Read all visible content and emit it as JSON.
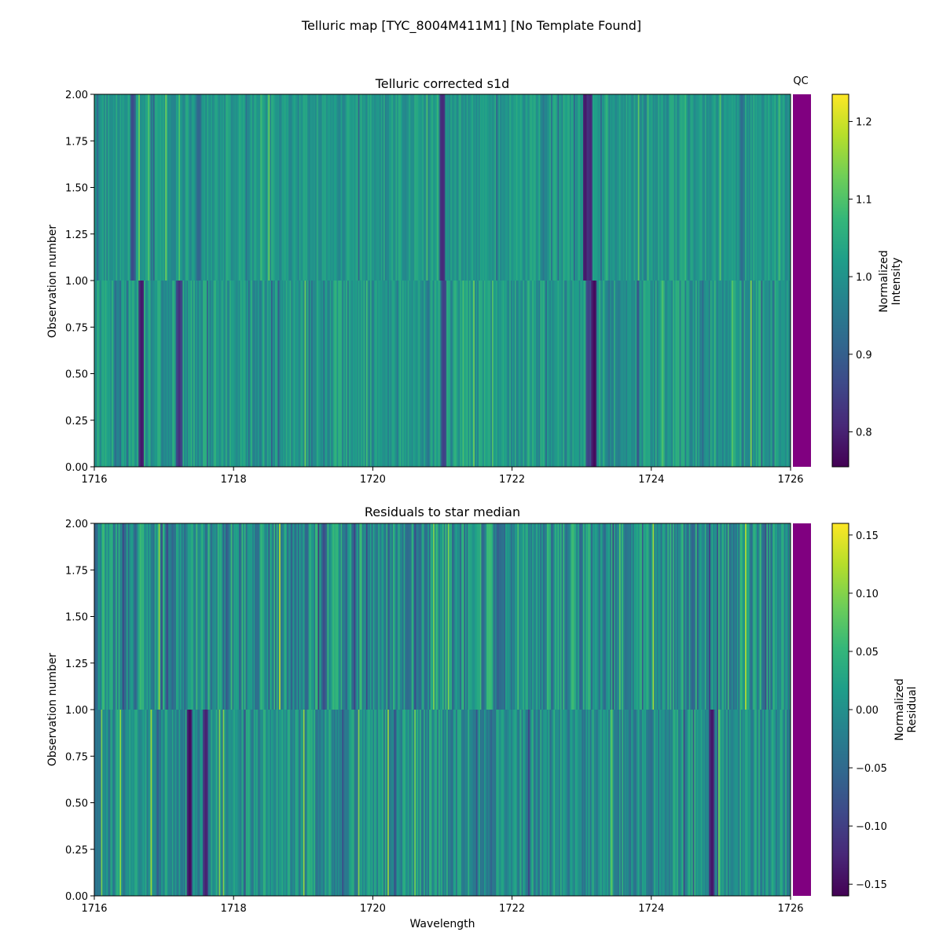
{
  "figure": {
    "suptitle": "Telluric map [TYC_8004M411M1] [No Template Found]"
  },
  "colors": {
    "qc_bar": "#800080",
    "axis": "#000000",
    "viridis": [
      "#440154",
      "#482878",
      "#3e4989",
      "#31688e",
      "#26828e",
      "#1f9e89",
      "#35b779",
      "#6ece58",
      "#b5de2b",
      "#fde725"
    ]
  },
  "chart_data": [
    {
      "type": "heatmap",
      "title": "Telluric corrected s1d",
      "xlabel": "",
      "ylabel": "Observation number",
      "xlim": [
        1716,
        1726
      ],
      "ylim": [
        0,
        2
      ],
      "xticks": [
        "1716",
        "1718",
        "1720",
        "1722",
        "1724",
        "1726"
      ],
      "yticks": [
        "0.00",
        "0.25",
        "0.50",
        "0.75",
        "1.00",
        "1.25",
        "1.50",
        "1.75",
        "2.00"
      ],
      "rows": [
        0,
        1
      ],
      "qc_label": "QC",
      "colorbar": {
        "label_lines": [
          "Normalized",
          "Intensity"
        ],
        "range": [
          0.755,
          1.235
        ],
        "ticks": [
          "0.8",
          "0.9",
          "1.0",
          "1.1",
          "1.2"
        ]
      },
      "features": {
        "row0_absorption_lines": [
          [
            1716.68,
            0.78
          ],
          [
            1717.22,
            0.82
          ],
          [
            1721.02,
            0.84
          ],
          [
            1723.18,
            0.76
          ],
          [
            1723.1,
            0.84
          ]
        ],
        "row1_absorption_lines": [
          [
            1716.55,
            0.86
          ],
          [
            1721.0,
            0.8
          ],
          [
            1723.05,
            0.78
          ],
          [
            1723.12,
            0.8
          ],
          [
            1717.5,
            0.9
          ],
          [
            1725.3,
            0.92
          ]
        ]
      }
    },
    {
      "type": "heatmap",
      "title": "Residuals to star median",
      "xlabel": "Wavelength",
      "ylabel": "Observation number",
      "xlim": [
        1716,
        1726
      ],
      "ylim": [
        0,
        2
      ],
      "xticks": [
        "1716",
        "1718",
        "1720",
        "1722",
        "1724",
        "1726"
      ],
      "yticks": [
        "0.00",
        "0.25",
        "0.50",
        "0.75",
        "1.00",
        "1.25",
        "1.50",
        "1.75",
        "2.00"
      ],
      "rows": [
        0,
        1
      ],
      "qc_label": "",
      "colorbar": {
        "label_lines": [
          "Normalized",
          "Residual"
        ],
        "range": [
          -0.16,
          0.16
        ],
        "ticks": [
          "0.15",
          "0.10",
          "0.05",
          "0.00",
          "−0.05",
          "−0.10",
          "−0.15"
        ],
        "tick_values": [
          0.15,
          0.1,
          0.05,
          0.0,
          -0.05,
          -0.1,
          -0.15
        ]
      },
      "features": {
        "row0_dark_lines": [
          [
            1717.37,
            -0.16
          ],
          [
            1717.6,
            -0.14
          ],
          [
            1724.87,
            -0.15
          ],
          [
            1721.7,
            -0.06
          ]
        ],
        "row1_dark_lines": [
          [
            1719.3,
            -0.09
          ],
          [
            1720.5,
            -0.06
          ],
          [
            1721.8,
            -0.07
          ]
        ]
      }
    }
  ]
}
